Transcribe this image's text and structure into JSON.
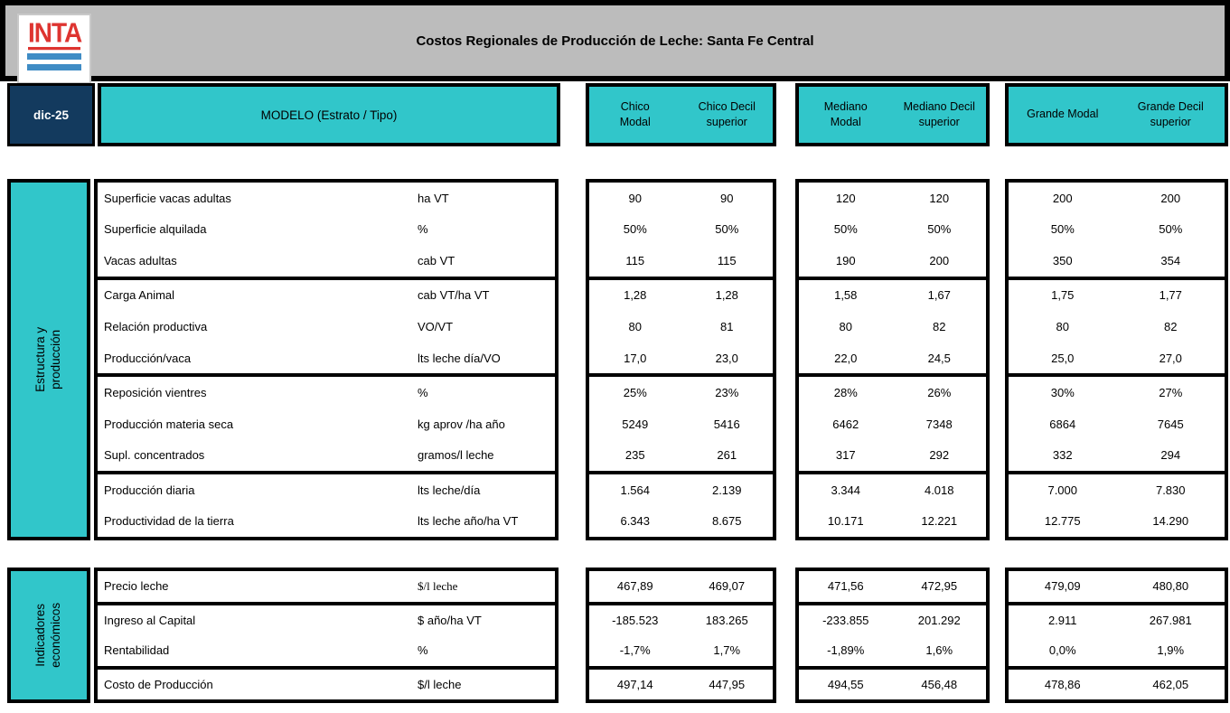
{
  "header": {
    "logo_text": "INTA",
    "title": "Costos Regionales de Producción de Leche: Santa Fe Central",
    "date_badge": "dic-25",
    "model_label": "MODELO (Estrato / Tipo)",
    "column_groups": [
      {
        "name": "Chico",
        "modal": [
          "Chico",
          "Modal"
        ],
        "decil": [
          "Chico Decil",
          "superior"
        ]
      },
      {
        "name": "Mediano",
        "modal": [
          "Mediano",
          "Modal"
        ],
        "decil": [
          "Mediano Decil",
          "superior"
        ]
      },
      {
        "name": "Grande",
        "modal": [
          "Grande Modal"
        ],
        "decil": [
          "Grande Decil",
          "superior"
        ]
      }
    ]
  },
  "colors": {
    "teal": "#31C6CA",
    "navy": "#133A5E",
    "header_gray": "#BCBCBC",
    "logo_red": "#DE3430",
    "logo_blue": "#3F8CC5",
    "border_black": "#000000"
  },
  "sections": [
    {
      "title": "Estructura y producción",
      "row_groups": [
        [
          {
            "label": "Superficie vacas adultas",
            "unit": "ha VT",
            "values": [
              "90",
              "90",
              "120",
              "120",
              "200",
              "200"
            ]
          },
          {
            "label": "Superficie alquilada",
            "unit": "%",
            "values": [
              "50%",
              "50%",
              "50%",
              "50%",
              "50%",
              "50%"
            ]
          },
          {
            "label": "Vacas adultas",
            "unit": "cab VT",
            "values": [
              "115",
              "115",
              "190",
              "200",
              "350",
              "354"
            ]
          }
        ],
        [
          {
            "label": "Carga Animal",
            "unit": "cab VT/ha VT",
            "values": [
              "1,28",
              "1,28",
              "1,58",
              "1,67",
              "1,75",
              "1,77"
            ]
          },
          {
            "label": "Relación productiva",
            "unit": "VO/VT",
            "values": [
              "80",
              "81",
              "80",
              "82",
              "80",
              "82"
            ]
          },
          {
            "label": "Producción/vaca",
            "unit": "lts leche día/VO",
            "values": [
              "17,0",
              "23,0",
              "22,0",
              "24,5",
              "25,0",
              "27,0"
            ]
          }
        ],
        [
          {
            "label": "Reposición vientres",
            "unit": "%",
            "values": [
              "25%",
              "23%",
              "28%",
              "26%",
              "30%",
              "27%"
            ]
          },
          {
            "label": "Producción materia seca",
            "unit": "kg aprov /ha año",
            "values": [
              "5249",
              "5416",
              "6462",
              "7348",
              "6864",
              "7645"
            ]
          },
          {
            "label": "Supl. concentrados",
            "unit": "gramos/l leche",
            "values": [
              "235",
              "261",
              "317",
              "292",
              "332",
              "294"
            ]
          }
        ],
        [
          {
            "label": "Producción diaria",
            "unit": "lts leche/día",
            "values": [
              "1.564",
              "2.139",
              "3.344",
              "4.018",
              "7.000",
              "7.830"
            ]
          },
          {
            "label": "Productividad de la tierra",
            "unit": "lts leche año/ha VT",
            "values": [
              "6.343",
              "8.675",
              "10.171",
              "12.221",
              "12.775",
              "14.290"
            ]
          }
        ]
      ]
    },
    {
      "title": [
        "Indicadores",
        "económicos"
      ],
      "row_groups": [
        [
          {
            "label": "Precio leche",
            "unit": "$/l leche",
            "unit_serif": true,
            "values": [
              "467,89",
              "469,07",
              "471,56",
              "472,95",
              "479,09",
              "480,80"
            ]
          }
        ],
        [
          {
            "label": "Ingreso al Capital",
            "unit": "$ año/ha VT",
            "values": [
              "-185.523",
              "183.265",
              "-233.855",
              "201.292",
              "2.911",
              "267.981"
            ]
          },
          {
            "label": "Rentabilidad",
            "unit": "%",
            "values": [
              "-1,7%",
              "1,7%",
              "-1,89%",
              "1,6%",
              "0,0%",
              "1,9%"
            ]
          }
        ],
        [
          {
            "label": "Costo de Producción",
            "unit": "$/l leche",
            "values": [
              "497,14",
              "447,95",
              "494,55",
              "456,48",
              "478,86",
              "462,05"
            ]
          }
        ]
      ]
    }
  ]
}
